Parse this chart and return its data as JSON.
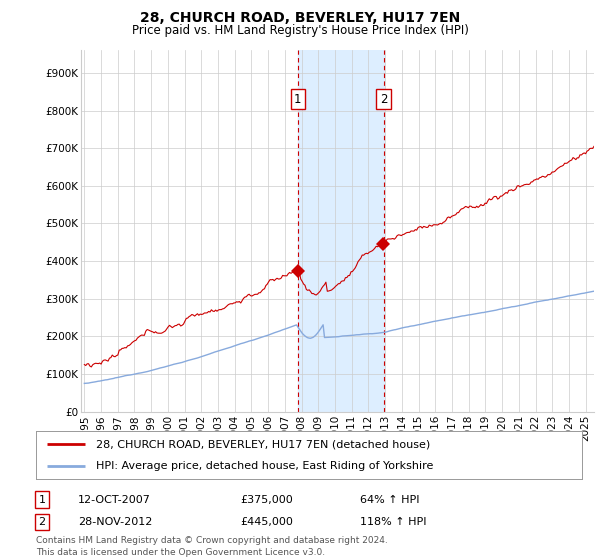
{
  "title": "28, CHURCH ROAD, BEVERLEY, HU17 7EN",
  "subtitle": "Price paid vs. HM Land Registry's House Price Index (HPI)",
  "ylabel_ticks": [
    "£0",
    "£100K",
    "£200K",
    "£300K",
    "£400K",
    "£500K",
    "£600K",
    "£700K",
    "£800K",
    "£900K"
  ],
  "ytick_values": [
    0,
    100000,
    200000,
    300000,
    400000,
    500000,
    600000,
    700000,
    800000,
    900000
  ],
  "ylim": [
    0,
    960000
  ],
  "xlim_start": 1994.8,
  "xlim_end": 2025.5,
  "transaction1_date": 2007.78,
  "transaction1_price": 375000,
  "transaction1_label": "1",
  "transaction2_date": 2012.92,
  "transaction2_price": 445000,
  "transaction2_label": "2",
  "legend_line1": "28, CHURCH ROAD, BEVERLEY, HU17 7EN (detached house)",
  "legend_line2": "HPI: Average price, detached house, East Riding of Yorkshire",
  "footer": "Contains HM Land Registry data © Crown copyright and database right 2024.\nThis data is licensed under the Open Government Licence v3.0.",
  "property_line_color": "#cc0000",
  "hpi_line_color": "#88aadd",
  "shaded_region_color": "#ddeeff",
  "dashed_line_color": "#cc0000",
  "grid_color": "#cccccc",
  "background_color": "#ffffff",
  "title_fontsize": 10,
  "subtitle_fontsize": 8.5,
  "tick_fontsize": 7.5,
  "legend_fontsize": 8,
  "annotation_fontsize": 8,
  "footer_fontsize": 6.5
}
